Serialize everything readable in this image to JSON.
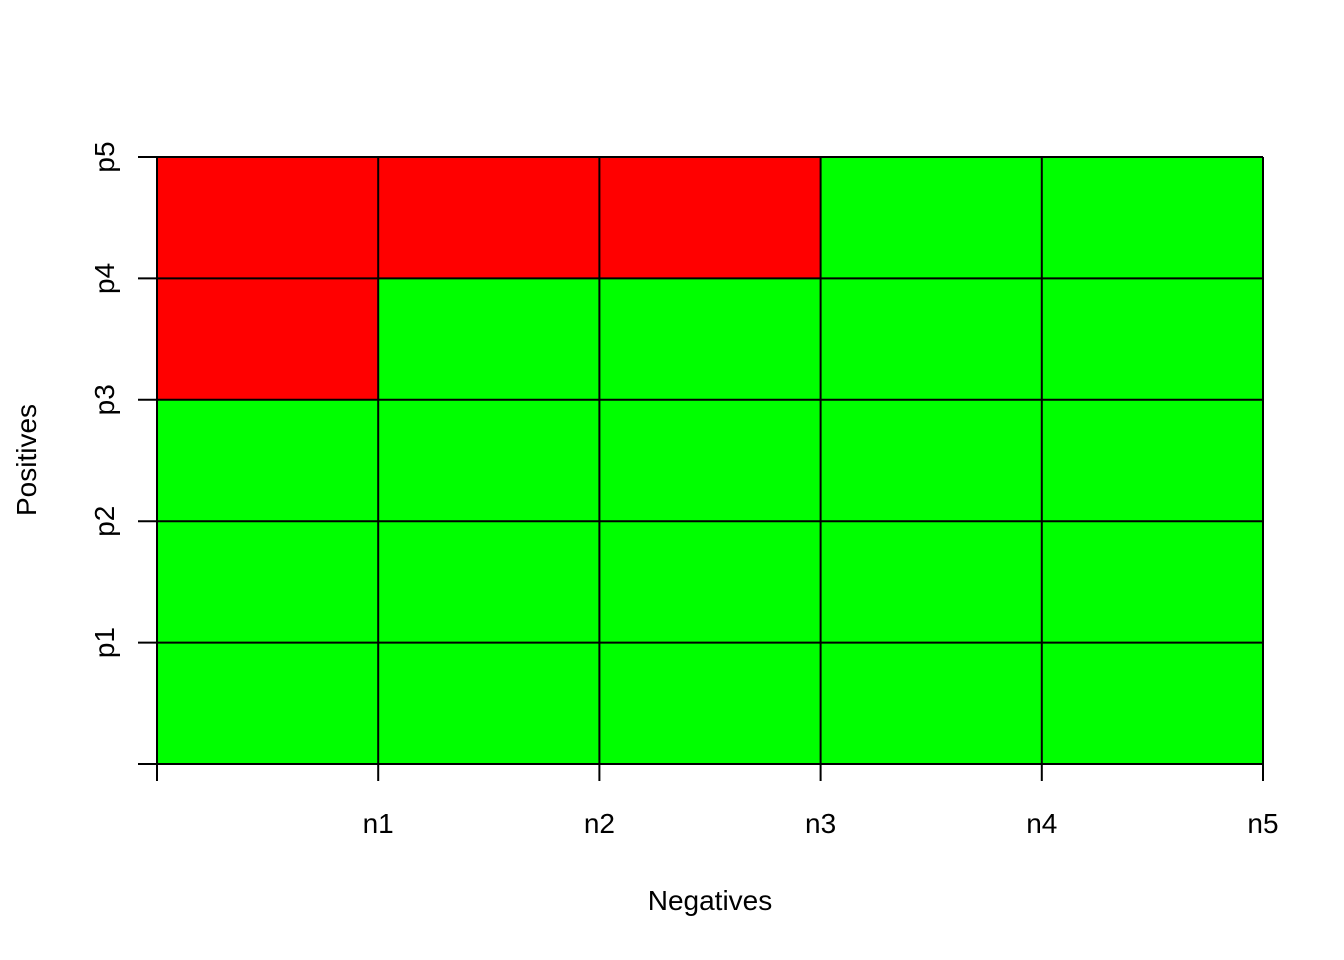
{
  "chart_data": {
    "type": "heatmap",
    "title": "",
    "xlabel": "Negatives",
    "ylabel": "Positives",
    "x_ticks": [
      "n1",
      "n2",
      "n3",
      "n4",
      "n5"
    ],
    "y_ticks": [
      "p1",
      "p2",
      "p3",
      "p4",
      "p5"
    ],
    "grid": true,
    "colors": {
      "red": "#ff0000",
      "green": "#00ff00",
      "line": "#000000"
    },
    "cells": [
      [
        "green",
        "green",
        "green",
        "green",
        "green"
      ],
      [
        "green",
        "green",
        "green",
        "green",
        "green"
      ],
      [
        "green",
        "green",
        "green",
        "green",
        "green"
      ],
      [
        "red",
        "green",
        "green",
        "green",
        "green"
      ],
      [
        "red",
        "red",
        "red",
        "green",
        "green"
      ]
    ]
  }
}
